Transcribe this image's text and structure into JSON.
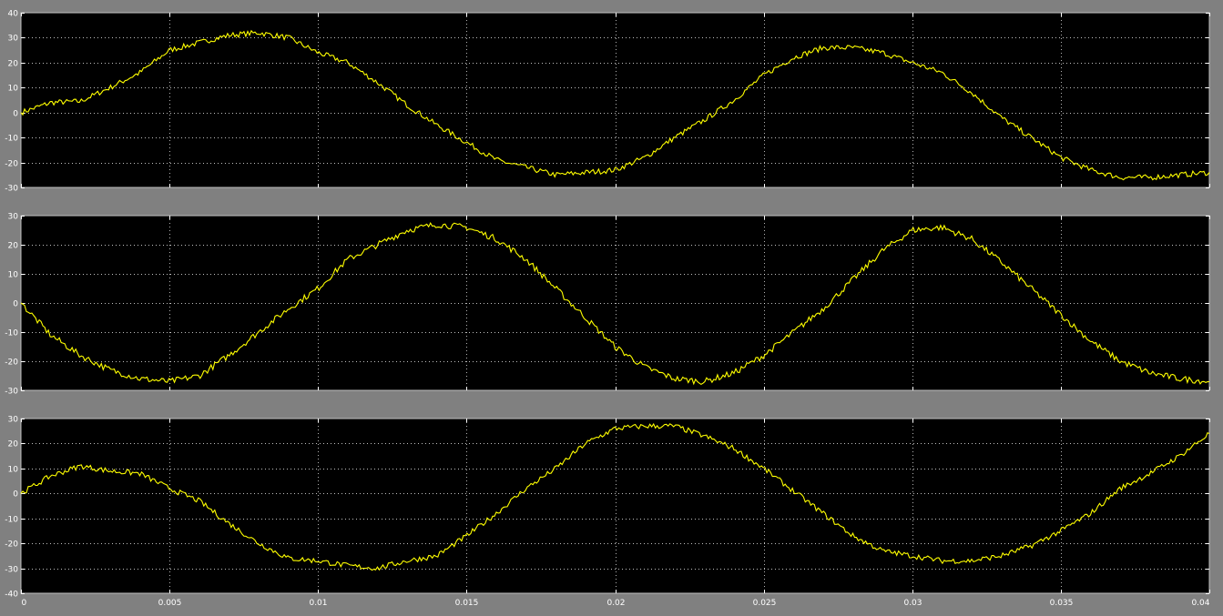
{
  "colors": {
    "background": "#808080",
    "plot": "#000000",
    "trace": "#ffff00",
    "grid": "#ffffff",
    "text": "#ffffff"
  },
  "chart_data": [
    {
      "type": "line",
      "grid": true,
      "xlim": [
        0,
        0.04
      ],
      "ylim": [
        -30,
        40
      ],
      "yticks": [
        -30,
        -20,
        -10,
        0,
        10,
        20,
        30,
        40
      ],
      "ytick_labels": [
        "-30",
        "-20",
        "-10",
        "0",
        "10",
        "20",
        "30",
        "40"
      ],
      "xticks": [
        0,
        0.005,
        0.01,
        0.015,
        0.02,
        0.025,
        0.03,
        0.035,
        0.04
      ],
      "series": [
        {
          "x": [
            0,
            0.001,
            0.002,
            0.003,
            0.004,
            0.005,
            0.006,
            0.007,
            0.008,
            0.009,
            0.01,
            0.011,
            0.012,
            0.013,
            0.014,
            0.015,
            0.016,
            0.017,
            0.018,
            0.019,
            0.02,
            0.021,
            0.022,
            0.023,
            0.024,
            0.025,
            0.026,
            0.027,
            0.028,
            0.029,
            0.03,
            0.031,
            0.032,
            0.033,
            0.034,
            0.035,
            0.036,
            0.037,
            0.038,
            0.039,
            0.04
          ],
          "y": [
            0,
            4,
            4.5,
            10,
            16,
            25,
            28,
            31,
            32,
            30,
            24,
            20,
            12,
            3,
            -5,
            -12,
            -19,
            -22,
            -25,
            -24,
            -23,
            -18,
            -10,
            -3,
            5,
            15,
            22,
            26,
            26,
            24,
            20,
            16,
            8,
            -2,
            -10,
            -18,
            -23,
            -26,
            -26,
            -25,
            -24
          ]
        }
      ]
    },
    {
      "type": "line",
      "grid": true,
      "xlim": [
        0,
        0.04
      ],
      "ylim": [
        -30,
        30
      ],
      "yticks": [
        -30,
        -20,
        -10,
        0,
        10,
        20,
        30
      ],
      "ytick_labels": [
        "-30",
        "-20",
        "-10",
        "0",
        "10",
        "20",
        "30"
      ],
      "xticks": [
        0,
        0.005,
        0.01,
        0.015,
        0.02,
        0.025,
        0.03,
        0.035,
        0.04
      ],
      "series": [
        {
          "x": [
            0,
            0.001,
            0.002,
            0.003,
            0.004,
            0.005,
            0.006,
            0.007,
            0.008,
            0.009,
            0.01,
            0.011,
            0.012,
            0.013,
            0.014,
            0.015,
            0.016,
            0.017,
            0.018,
            0.019,
            0.02,
            0.021,
            0.022,
            0.023,
            0.024,
            0.025,
            0.026,
            0.027,
            0.028,
            0.029,
            0.03,
            0.031,
            0.032,
            0.033,
            0.034,
            0.035,
            0.036,
            0.037,
            0.038,
            0.039,
            0.04
          ],
          "y": [
            0,
            -11,
            -18,
            -23,
            -26,
            -27,
            -25,
            -18,
            -10,
            -2,
            5,
            15,
            20,
            25,
            27,
            26,
            22,
            15,
            5,
            -5,
            -15,
            -22,
            -26,
            -27,
            -24,
            -18,
            -10,
            -2,
            8,
            18,
            25,
            26,
            22,
            14,
            5,
            -4,
            -13,
            -20,
            -24,
            -26,
            -27
          ]
        }
      ]
    },
    {
      "type": "line",
      "grid": true,
      "xlim": [
        0,
        0.04
      ],
      "ylim": [
        -40,
        30
      ],
      "yticks": [
        -40,
        -30,
        -20,
        -10,
        0,
        10,
        20,
        30
      ],
      "ytick_labels": [
        "-40",
        "-30",
        "-20",
        "-10",
        "0",
        "10",
        "20",
        "30"
      ],
      "xticks": [
        0,
        0.005,
        0.01,
        0.015,
        0.02,
        0.025,
        0.03,
        0.035,
        0.04
      ],
      "xtick_labels": [
        "0",
        "0.005",
        "0.01",
        "0.015",
        "0.02",
        "0.025",
        "0.03",
        "0.035",
        "0.04"
      ],
      "series": [
        {
          "x": [
            0,
            0.001,
            0.002,
            0.003,
            0.004,
            0.005,
            0.006,
            0.007,
            0.008,
            0.009,
            0.01,
            0.011,
            0.012,
            0.013,
            0.014,
            0.015,
            0.016,
            0.017,
            0.018,
            0.019,
            0.02,
            0.021,
            0.022,
            0.023,
            0.024,
            0.025,
            0.026,
            0.027,
            0.028,
            0.029,
            0.03,
            0.031,
            0.032,
            0.033,
            0.034,
            0.035,
            0.036,
            0.037,
            0.038,
            0.039,
            0.04
          ],
          "y": [
            0,
            7,
            11,
            9,
            8,
            2,
            -3,
            -12,
            -20,
            -26,
            -27,
            -29,
            -30,
            -27,
            -25,
            -17,
            -8,
            2,
            10,
            20,
            26,
            27,
            27,
            23,
            18,
            10,
            1,
            -8,
            -17,
            -23,
            -25,
            -27,
            -27,
            -25,
            -21,
            -15,
            -8,
            2,
            8,
            15,
            24
          ]
        }
      ]
    }
  ]
}
